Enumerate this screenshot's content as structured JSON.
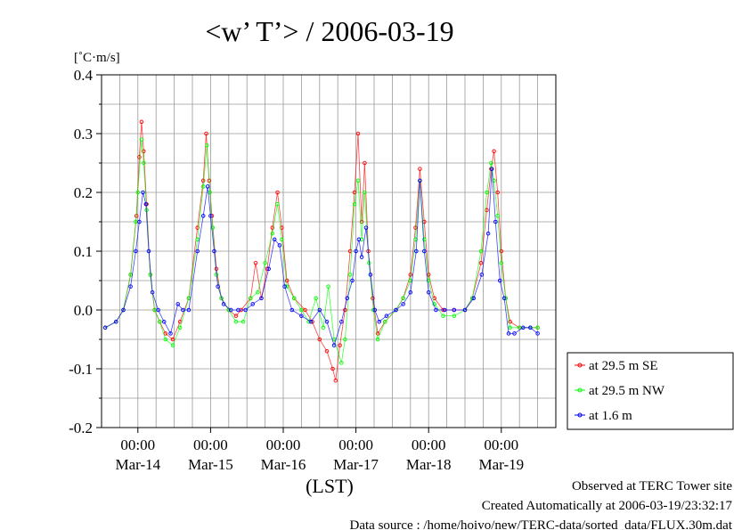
{
  "chart_data": {
    "type": "line",
    "title": "<w’ T’> / 2006-03-19",
    "ylabel": "[˚C·m/s]",
    "xlabel": "(LST)",
    "ylim": [
      -0.2,
      0.4
    ],
    "yticks": [
      "-0.2",
      "-0.1",
      "0.0",
      "0.1",
      "0.2",
      "0.3",
      "0.4"
    ],
    "ytick_values": [
      -0.2,
      -0.1,
      0.0,
      0.1,
      0.2,
      0.3,
      0.4
    ],
    "xlim_days": [
      -0.5,
      5.75
    ],
    "xtick_time": "00:00",
    "xtick_dates": [
      "Mar-14",
      "Mar-15",
      "Mar-16",
      "Mar-17",
      "Mar-18",
      "Mar-19"
    ],
    "grid": true,
    "legend_position": "right",
    "series": [
      {
        "name": "at 29.5 m SE",
        "color": "#ff0000",
        "values": [
          [
            -0.45,
            -0.03
          ],
          [
            -0.3,
            -0.02
          ],
          [
            -0.2,
            0.0
          ],
          [
            -0.1,
            0.06
          ],
          [
            -0.02,
            0.16
          ],
          [
            0.02,
            0.26
          ],
          [
            0.05,
            0.32
          ],
          [
            0.08,
            0.27
          ],
          [
            0.12,
            0.18
          ],
          [
            0.17,
            0.06
          ],
          [
            0.23,
            0.0
          ],
          [
            0.3,
            -0.02
          ],
          [
            0.38,
            -0.04
          ],
          [
            0.48,
            -0.05
          ],
          [
            0.58,
            -0.02
          ],
          [
            0.7,
            0.02
          ],
          [
            0.82,
            0.14
          ],
          [
            0.9,
            0.22
          ],
          [
            0.94,
            0.3
          ],
          [
            0.98,
            0.22
          ],
          [
            1.02,
            0.16
          ],
          [
            1.08,
            0.07
          ],
          [
            1.15,
            0.02
          ],
          [
            1.25,
            0.0
          ],
          [
            1.35,
            -0.01
          ],
          [
            1.42,
            0.0
          ],
          [
            1.55,
            0.02
          ],
          [
            1.62,
            0.08
          ],
          [
            1.7,
            0.02
          ],
          [
            1.78,
            0.07
          ],
          [
            1.85,
            0.14
          ],
          [
            1.92,
            0.2
          ],
          [
            1.98,
            0.14
          ],
          [
            2.05,
            0.05
          ],
          [
            2.15,
            0.02
          ],
          [
            2.3,
            0.0
          ],
          [
            2.4,
            -0.02
          ],
          [
            2.5,
            -0.05
          ],
          [
            2.6,
            -0.07
          ],
          [
            2.68,
            -0.1
          ],
          [
            2.72,
            -0.12
          ],
          [
            2.78,
            -0.06
          ],
          [
            2.85,
            0.0
          ],
          [
            2.92,
            0.1
          ],
          [
            2.98,
            0.2
          ],
          [
            3.03,
            0.3
          ],
          [
            3.08,
            0.15
          ],
          [
            3.12,
            0.25
          ],
          [
            3.17,
            0.1
          ],
          [
            3.23,
            0.02
          ],
          [
            3.3,
            -0.04
          ],
          [
            3.4,
            -0.02
          ],
          [
            3.55,
            0.0
          ],
          [
            3.65,
            0.02
          ],
          [
            3.75,
            0.06
          ],
          [
            3.82,
            0.14
          ],
          [
            3.88,
            0.24
          ],
          [
            3.94,
            0.15
          ],
          [
            4.0,
            0.06
          ],
          [
            4.08,
            0.02
          ],
          [
            4.2,
            0.0
          ],
          [
            4.35,
            0.0
          ],
          [
            4.5,
            0.0
          ],
          [
            4.6,
            0.02
          ],
          [
            4.72,
            0.08
          ],
          [
            4.8,
            0.17
          ],
          [
            4.86,
            0.24
          ],
          [
            4.9,
            0.27
          ],
          [
            4.95,
            0.2
          ],
          [
            5.0,
            0.1
          ],
          [
            5.06,
            0.02
          ],
          [
            5.12,
            -0.02
          ],
          [
            5.25,
            -0.03
          ],
          [
            5.4,
            -0.03
          ],
          [
            5.5,
            -0.03
          ]
        ]
      },
      {
        "name": "at 29.5 m NW",
        "color": "#00ff00",
        "values": [
          [
            -0.45,
            -0.03
          ],
          [
            -0.3,
            -0.02
          ],
          [
            -0.2,
            0.0
          ],
          [
            -0.1,
            0.06
          ],
          [
            -0.03,
            0.15
          ],
          [
            0.0,
            0.2
          ],
          [
            0.05,
            0.29
          ],
          [
            0.08,
            0.25
          ],
          [
            0.12,
            0.17
          ],
          [
            0.17,
            0.06
          ],
          [
            0.23,
            0.0
          ],
          [
            0.3,
            -0.02
          ],
          [
            0.38,
            -0.05
          ],
          [
            0.48,
            -0.06
          ],
          [
            0.58,
            -0.03
          ],
          [
            0.7,
            0.02
          ],
          [
            0.82,
            0.12
          ],
          [
            0.9,
            0.21
          ],
          [
            0.95,
            0.28
          ],
          [
            0.99,
            0.2
          ],
          [
            1.03,
            0.14
          ],
          [
            1.08,
            0.06
          ],
          [
            1.15,
            0.02
          ],
          [
            1.25,
            0.0
          ],
          [
            1.35,
            -0.02
          ],
          [
            1.45,
            -0.02
          ],
          [
            1.55,
            0.02
          ],
          [
            1.65,
            0.03
          ],
          [
            1.75,
            0.08
          ],
          [
            1.85,
            0.13
          ],
          [
            1.92,
            0.18
          ],
          [
            1.98,
            0.12
          ],
          [
            2.05,
            0.04
          ],
          [
            2.15,
            0.02
          ],
          [
            2.25,
            0.0
          ],
          [
            2.35,
            -0.02
          ],
          [
            2.45,
            0.02
          ],
          [
            2.55,
            -0.03
          ],
          [
            2.62,
            0.04
          ],
          [
            2.7,
            -0.05
          ],
          [
            2.8,
            -0.09
          ],
          [
            2.85,
            -0.05
          ],
          [
            2.92,
            0.06
          ],
          [
            2.98,
            0.18
          ],
          [
            3.03,
            0.22
          ],
          [
            3.08,
            0.12
          ],
          [
            3.12,
            0.2
          ],
          [
            3.18,
            0.08
          ],
          [
            3.24,
            0.0
          ],
          [
            3.3,
            -0.05
          ],
          [
            3.4,
            -0.02
          ],
          [
            3.55,
            0.0
          ],
          [
            3.65,
            0.02
          ],
          [
            3.75,
            0.05
          ],
          [
            3.82,
            0.12
          ],
          [
            3.88,
            0.22
          ],
          [
            3.94,
            0.12
          ],
          [
            4.0,
            0.05
          ],
          [
            4.08,
            0.01
          ],
          [
            4.2,
            -0.01
          ],
          [
            4.35,
            -0.01
          ],
          [
            4.5,
            0.0
          ],
          [
            4.6,
            0.02
          ],
          [
            4.72,
            0.1
          ],
          [
            4.8,
            0.2
          ],
          [
            4.86,
            0.25
          ],
          [
            4.9,
            0.22
          ],
          [
            4.95,
            0.16
          ],
          [
            5.0,
            0.08
          ],
          [
            5.06,
            0.02
          ],
          [
            5.12,
            -0.03
          ],
          [
            5.25,
            -0.03
          ],
          [
            5.4,
            -0.03
          ],
          [
            5.5,
            -0.03
          ]
        ]
      },
      {
        "name": "at 1.6 m",
        "color": "#0000ff",
        "values": [
          [
            -0.45,
            -0.03
          ],
          [
            -0.3,
            -0.02
          ],
          [
            -0.2,
            0.0
          ],
          [
            -0.1,
            0.04
          ],
          [
            -0.03,
            0.1
          ],
          [
            0.02,
            0.15
          ],
          [
            0.07,
            0.2
          ],
          [
            0.11,
            0.18
          ],
          [
            0.15,
            0.1
          ],
          [
            0.2,
            0.03
          ],
          [
            0.28,
            0.0
          ],
          [
            0.36,
            -0.02
          ],
          [
            0.45,
            -0.04
          ],
          [
            0.55,
            0.01
          ],
          [
            0.62,
            0.0
          ],
          [
            0.7,
            0.0
          ],
          [
            0.82,
            0.1
          ],
          [
            0.9,
            0.16
          ],
          [
            0.96,
            0.21
          ],
          [
            1.0,
            0.16
          ],
          [
            1.05,
            0.1
          ],
          [
            1.1,
            0.04
          ],
          [
            1.18,
            0.01
          ],
          [
            1.28,
            0.0
          ],
          [
            1.38,
            0.0
          ],
          [
            1.48,
            0.0
          ],
          [
            1.58,
            0.01
          ],
          [
            1.7,
            0.02
          ],
          [
            1.8,
            0.07
          ],
          [
            1.88,
            0.12
          ],
          [
            1.95,
            0.11
          ],
          [
            2.02,
            0.04
          ],
          [
            2.12,
            0.0
          ],
          [
            2.25,
            -0.01
          ],
          [
            2.38,
            -0.02
          ],
          [
            2.5,
            0.0
          ],
          [
            2.6,
            -0.02
          ],
          [
            2.7,
            -0.06
          ],
          [
            2.8,
            -0.02
          ],
          [
            2.88,
            0.02
          ],
          [
            2.95,
            0.05
          ],
          [
            3.0,
            0.1
          ],
          [
            3.04,
            0.12
          ],
          [
            3.08,
            0.09
          ],
          [
            3.14,
            0.14
          ],
          [
            3.2,
            0.06
          ],
          [
            3.26,
            0.0
          ],
          [
            3.32,
            -0.02
          ],
          [
            3.42,
            -0.01
          ],
          [
            3.55,
            0.0
          ],
          [
            3.65,
            0.01
          ],
          [
            3.75,
            0.03
          ],
          [
            3.83,
            0.1
          ],
          [
            3.88,
            0.22
          ],
          [
            3.94,
            0.1
          ],
          [
            4.0,
            0.03
          ],
          [
            4.1,
            0.0
          ],
          [
            4.22,
            0.0
          ],
          [
            4.35,
            0.0
          ],
          [
            4.5,
            0.0
          ],
          [
            4.62,
            0.02
          ],
          [
            4.73,
            0.06
          ],
          [
            4.82,
            0.13
          ],
          [
            4.87,
            0.24
          ],
          [
            4.92,
            0.15
          ],
          [
            4.98,
            0.05
          ],
          [
            5.04,
            0.02
          ],
          [
            5.1,
            -0.04
          ],
          [
            5.18,
            -0.04
          ],
          [
            5.3,
            -0.03
          ],
          [
            5.4,
            -0.03
          ],
          [
            5.5,
            -0.04
          ]
        ]
      }
    ]
  },
  "footer": {
    "line1": "Observed at TERC Tower site",
    "line2": "Created Automatically at 2006-03-19/23:32:17",
    "line3": "Data source : /home/hoivo/new/TERC-data/sorted_data/FLUX.30m.dat"
  }
}
